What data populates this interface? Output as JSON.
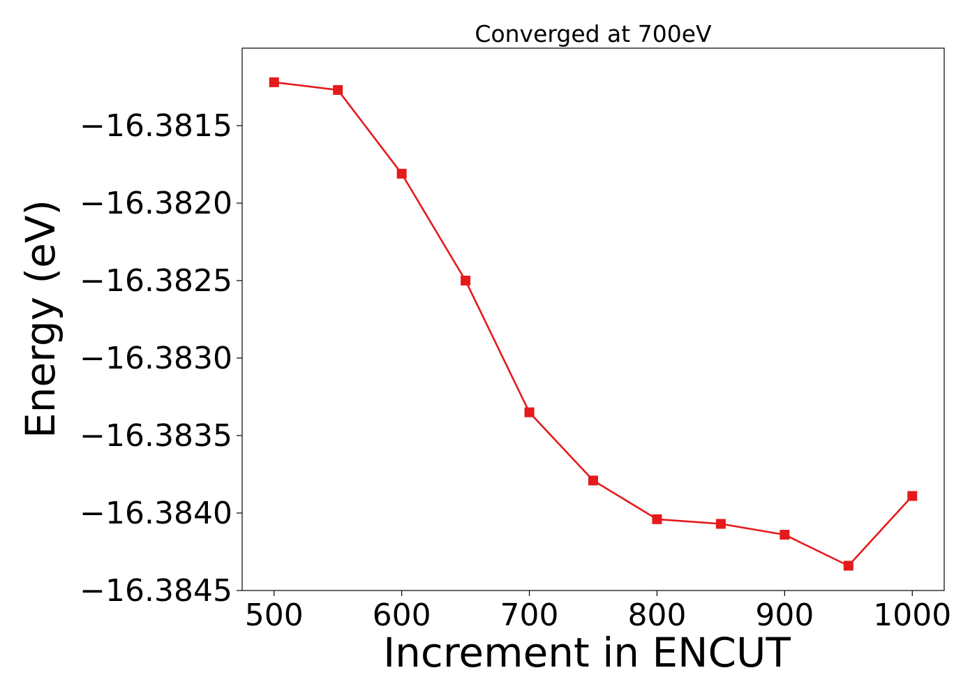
{
  "chart_data": {
    "type": "line",
    "title": "Converged at 700eV",
    "xlabel": "Increment in ENCUT",
    "ylabel": "Energy (eV)",
    "xlim": [
      475,
      1025
    ],
    "ylim": [
      -16.3845,
      -16.381
    ],
    "xticks": [
      500,
      600,
      700,
      800,
      900,
      1000
    ],
    "xtick_labels": [
      "500",
      "600",
      "700",
      "800",
      "900",
      "1000"
    ],
    "yticks": [
      -16.3845,
      -16.384,
      -16.3835,
      -16.383,
      -16.3825,
      -16.382,
      -16.3815
    ],
    "ytick_labels": [
      "−16.3845",
      "−16.3840",
      "−16.3835",
      "−16.3830",
      "−16.3825",
      "−16.3820",
      "−16.3815"
    ],
    "grid": false,
    "series": [
      {
        "color": "#e41a1c",
        "marker": "square",
        "x": [
          500,
          550,
          600,
          650,
          700,
          750,
          800,
          850,
          900,
          950,
          1000
        ],
        "y": [
          -16.38122,
          -16.38127,
          -16.38181,
          -16.3825,
          -16.38335,
          -16.38379,
          -16.38404,
          -16.38407,
          -16.38414,
          -16.38434,
          -16.38389
        ]
      }
    ]
  }
}
